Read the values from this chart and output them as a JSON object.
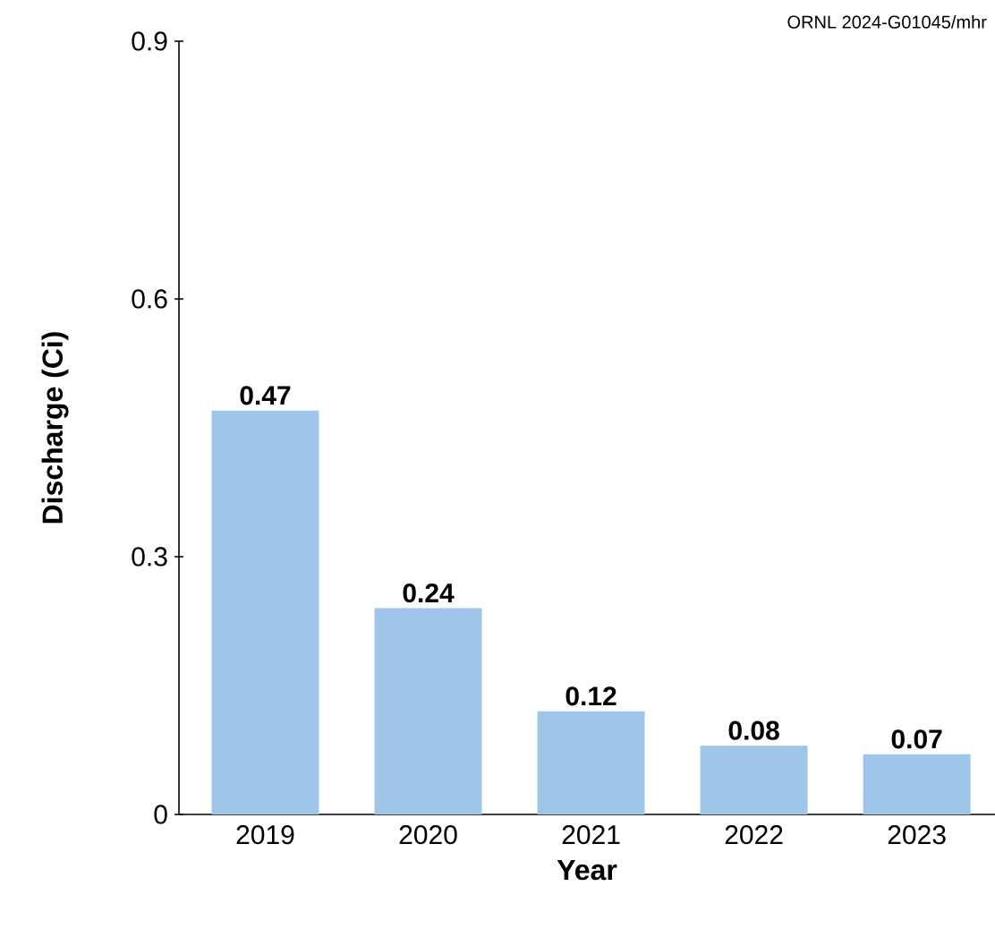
{
  "chart_data": {
    "type": "bar",
    "xlabel": "Year",
    "ylabel": "Discharge (Ci)",
    "annotations": [
      "ORNL 2024-G01045/mhr"
    ],
    "categories": [
      "2019",
      "2020",
      "2021",
      "2022",
      "2023"
    ],
    "values": [
      0.47,
      0.24,
      0.12,
      0.08,
      0.07
    ],
    "color": "#9fc5e8",
    "ylim": [
      0,
      0.9
    ],
    "yticks": [
      0,
      0.3,
      0.6,
      0.9
    ],
    "data_labels": true
  }
}
